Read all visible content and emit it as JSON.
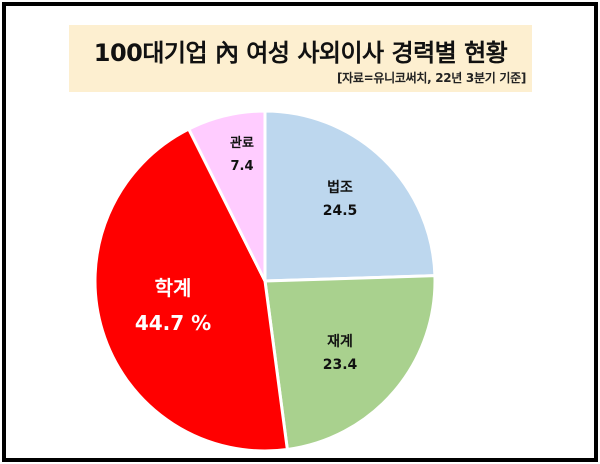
{
  "title": "100대기업 內 여성 사외이사 경력별 현황",
  "source": "[자료=유니코써치, 22년 3분기 기준]",
  "chart_data": {
    "type": "pie",
    "title": "100대기업 內 여성 사외이사 경력별 현황",
    "subtitle": "[자료=유니코써치, 22년 3분기 기준]",
    "categories": [
      "법조",
      "재계",
      "학계",
      "관료"
    ],
    "values": [
      24.5,
      23.4,
      44.7,
      7.4
    ],
    "unit": "%",
    "colors": [
      "#bdd7ee",
      "#a9d18e",
      "#ff0000",
      "#ffccff"
    ],
    "start_angle": "12 o'clock, clockwise",
    "legend": "none (data labels inside slices)"
  },
  "labels": {
    "s0": {
      "name": "법조",
      "value": "24.5"
    },
    "s1": {
      "name": "재계",
      "value": "23.4"
    },
    "s2": {
      "name": "학계",
      "value": "44.7 %"
    },
    "s3": {
      "name": "관료",
      "value": "7.4"
    }
  }
}
